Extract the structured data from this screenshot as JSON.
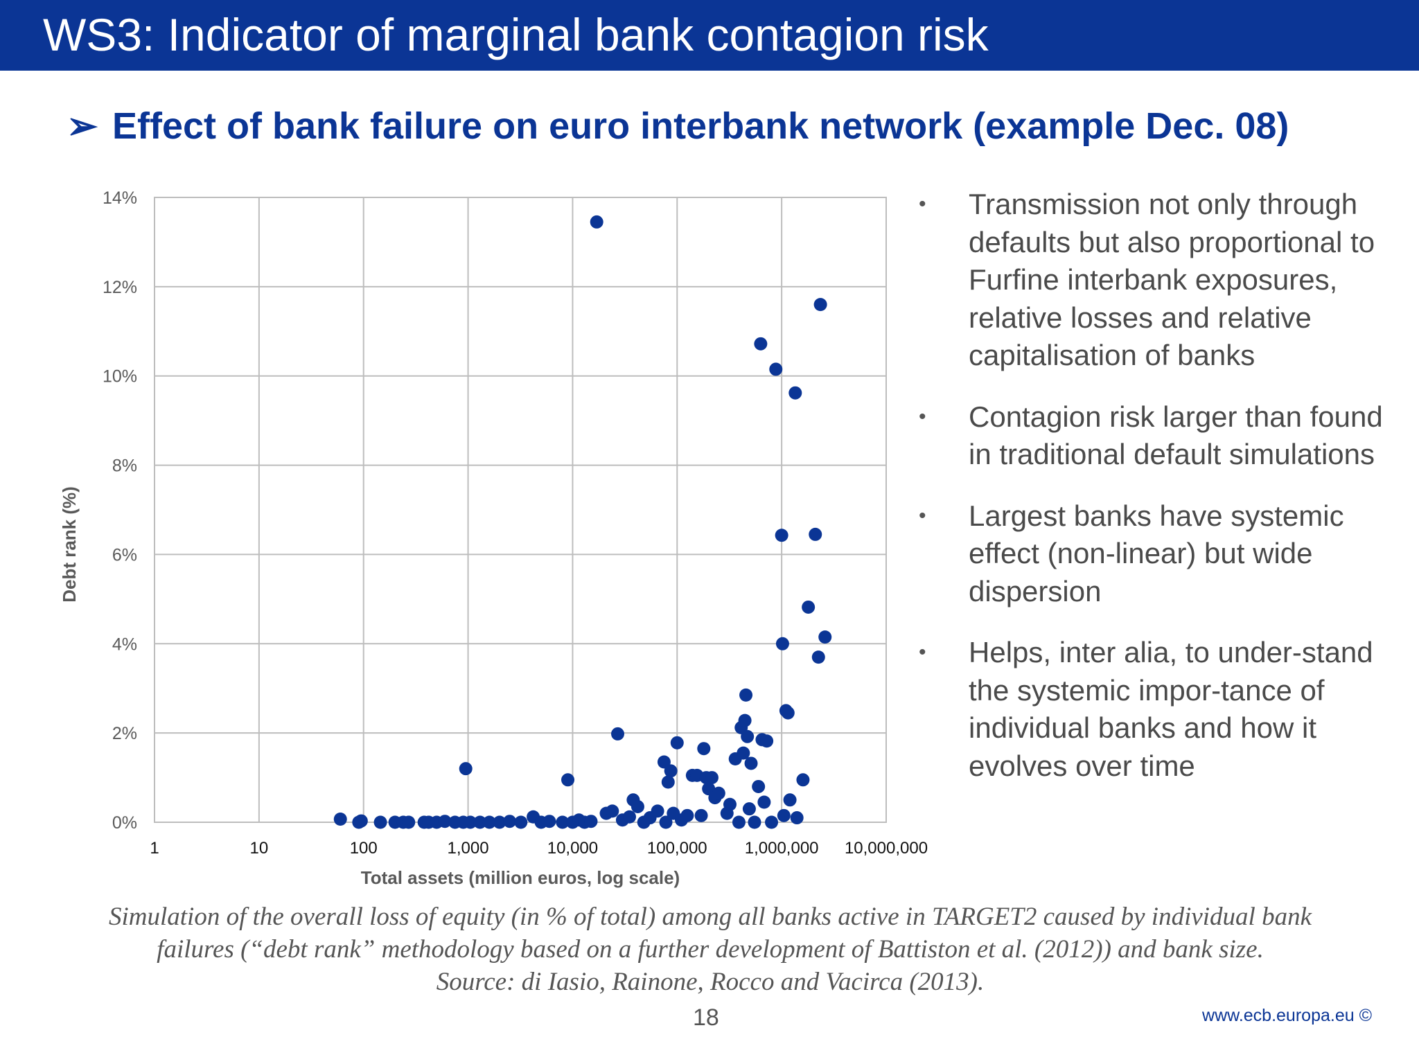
{
  "slide": {
    "title": "WS3: Indicator of marginal bank contagion risk",
    "subtitle": "Effect of bank failure on euro interbank network (example Dec. 08)",
    "arrow_glyph": "➢",
    "bullets": [
      "Transmission not only through defaults but also proportional to Furfine interbank exposures, relative losses and relative capitalisation of banks",
      "Contagion risk larger than found in traditional default simulations",
      "Largest banks have systemic effect (non-linear) but wide dispersion",
      "Helps, inter alia, to under-stand the systemic impor-tance of individual banks and how it evolves over time"
    ],
    "bullet_glyph": "•",
    "caption_lines": [
      "Simulation of the overall loss of equity (in % of total) among all banks active in TARGET2 caused by individual bank",
      "failures (“debt rank” methodology based on a further development of Battiston et al. (2012)) and bank size.",
      "Source: di Iasio, Rainone, Rocco and Vacirca (2013)."
    ],
    "page_number": "18",
    "website": "www.ecb.europa.eu ©",
    "colors": {
      "brand": "#0b3595",
      "marker": "#0b3595",
      "text": "#4a4a4a"
    }
  },
  "chart_data": {
    "type": "scatter",
    "xscale": "log",
    "xlim": [
      1,
      10000000
    ],
    "ylim": [
      0,
      14
    ],
    "xlabel": "Total assets (million euros, log scale)",
    "ylabel": "Debt rank (%)",
    "xticks": [
      1,
      10,
      100,
      1000,
      10000,
      100000,
      1000000,
      10000000
    ],
    "xtick_labels": [
      "1",
      "10",
      "100",
      "1,000",
      "10,000",
      "100,000",
      "1,000,000",
      "10,000,000"
    ],
    "yticks": [
      0,
      2,
      4,
      6,
      8,
      10,
      12,
      14
    ],
    "ytick_labels": [
      "0%",
      "2%",
      "4%",
      "6%",
      "8%",
      "10%",
      "12%",
      "14%"
    ],
    "grid": true,
    "points": [
      {
        "x": 60,
        "y": 0.07
      },
      {
        "x": 90,
        "y": 0.0
      },
      {
        "x": 95,
        "y": 0.03
      },
      {
        "x": 145,
        "y": 0.0
      },
      {
        "x": 200,
        "y": 0.0
      },
      {
        "x": 240,
        "y": 0.0
      },
      {
        "x": 270,
        "y": 0.0
      },
      {
        "x": 380,
        "y": 0.0
      },
      {
        "x": 420,
        "y": 0.0
      },
      {
        "x": 500,
        "y": 0.0
      },
      {
        "x": 600,
        "y": 0.02
      },
      {
        "x": 750,
        "y": 0.0
      },
      {
        "x": 900,
        "y": 0.0
      },
      {
        "x": 950,
        "y": 1.2
      },
      {
        "x": 1050,
        "y": 0.0
      },
      {
        "x": 1300,
        "y": 0.0
      },
      {
        "x": 1600,
        "y": 0.0
      },
      {
        "x": 2000,
        "y": 0.0
      },
      {
        "x": 2500,
        "y": 0.02
      },
      {
        "x": 3200,
        "y": 0.0
      },
      {
        "x": 4200,
        "y": 0.12
      },
      {
        "x": 5000,
        "y": 0.0
      },
      {
        "x": 6000,
        "y": 0.02
      },
      {
        "x": 8000,
        "y": 0.0
      },
      {
        "x": 9000,
        "y": 0.95
      },
      {
        "x": 10000,
        "y": 0.0
      },
      {
        "x": 11500,
        "y": 0.05
      },
      {
        "x": 13000,
        "y": 0.0
      },
      {
        "x": 15000,
        "y": 0.02
      },
      {
        "x": 17000,
        "y": 13.45
      },
      {
        "x": 21000,
        "y": 0.2
      },
      {
        "x": 24000,
        "y": 0.25
      },
      {
        "x": 27000,
        "y": 1.98
      },
      {
        "x": 30000,
        "y": 0.05
      },
      {
        "x": 35000,
        "y": 0.12
      },
      {
        "x": 38000,
        "y": 0.5
      },
      {
        "x": 42000,
        "y": 0.35
      },
      {
        "x": 48000,
        "y": 0.0
      },
      {
        "x": 55000,
        "y": 0.1
      },
      {
        "x": 65000,
        "y": 0.25
      },
      {
        "x": 75000,
        "y": 1.35
      },
      {
        "x": 78000,
        "y": 0.0
      },
      {
        "x": 82000,
        "y": 0.9
      },
      {
        "x": 87000,
        "y": 1.15
      },
      {
        "x": 92000,
        "y": 0.2
      },
      {
        "x": 100000,
        "y": 1.78
      },
      {
        "x": 110000,
        "y": 0.05
      },
      {
        "x": 125000,
        "y": 0.15
      },
      {
        "x": 140000,
        "y": 1.05
      },
      {
        "x": 155000,
        "y": 1.05
      },
      {
        "x": 170000,
        "y": 0.15
      },
      {
        "x": 180000,
        "y": 1.65
      },
      {
        "x": 190000,
        "y": 1.0
      },
      {
        "x": 200000,
        "y": 0.75
      },
      {
        "x": 215000,
        "y": 1.0
      },
      {
        "x": 230000,
        "y": 0.55
      },
      {
        "x": 250000,
        "y": 0.65
      },
      {
        "x": 300000,
        "y": 0.2
      },
      {
        "x": 320000,
        "y": 0.4
      },
      {
        "x": 360000,
        "y": 1.42
      },
      {
        "x": 390000,
        "y": 0.0
      },
      {
        "x": 410000,
        "y": 2.12
      },
      {
        "x": 430000,
        "y": 1.55
      },
      {
        "x": 445000,
        "y": 2.28
      },
      {
        "x": 455000,
        "y": 2.85
      },
      {
        "x": 470000,
        "y": 1.92
      },
      {
        "x": 490000,
        "y": 0.3
      },
      {
        "x": 510000,
        "y": 1.32
      },
      {
        "x": 550000,
        "y": 0.0
      },
      {
        "x": 600000,
        "y": 0.8
      },
      {
        "x": 630000,
        "y": 10.72
      },
      {
        "x": 650000,
        "y": 1.85
      },
      {
        "x": 680000,
        "y": 0.45
      },
      {
        "x": 720000,
        "y": 1.82
      },
      {
        "x": 800000,
        "y": 0.0
      },
      {
        "x": 880000,
        "y": 10.15
      },
      {
        "x": 1000000,
        "y": 6.43
      },
      {
        "x": 1020000,
        "y": 4.0
      },
      {
        "x": 1050000,
        "y": 0.15
      },
      {
        "x": 1100000,
        "y": 2.5
      },
      {
        "x": 1150000,
        "y": 2.45
      },
      {
        "x": 1200000,
        "y": 0.5
      },
      {
        "x": 1350000,
        "y": 9.62
      },
      {
        "x": 1400000,
        "y": 0.1
      },
      {
        "x": 1600000,
        "y": 0.95
      },
      {
        "x": 1800000,
        "y": 4.82
      },
      {
        "x": 2100000,
        "y": 6.45
      },
      {
        "x": 2250000,
        "y": 3.7
      },
      {
        "x": 2350000,
        "y": 11.6
      },
      {
        "x": 2600000,
        "y": 4.15
      }
    ]
  }
}
